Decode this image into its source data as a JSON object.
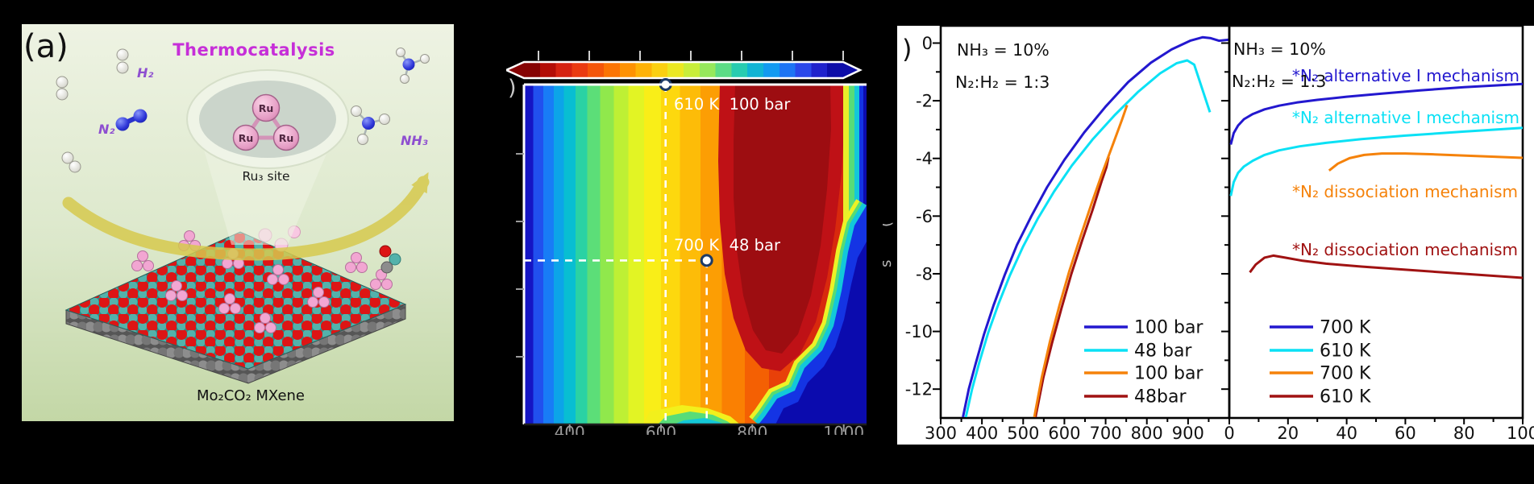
{
  "panel_a": {
    "label": "(a)",
    "title": "Thermocatalysis",
    "molecules": {
      "h2": "H₂",
      "n2": "N₂",
      "nh3": "NH₃"
    },
    "cluster": {
      "atom": "Ru",
      "site": "Ru₃ site"
    },
    "substrate": "Mo₂CO₂ MXene",
    "colors": {
      "title": "#c62fd8",
      "molecule_labels": "#8e4fd0"
    }
  },
  "panel_b": {
    "label_fragment": ")",
    "colorbar": {
      "style": "rainbow, dark red (high) to dark blue (low)",
      "tick_count": 7,
      "labels_visible": false
    }
  },
  "panel_c": {
    "label_fragment": ")",
    "conditions": [
      "NH₃ = 10%",
      "N₂:H₂ = 1:3"
    ],
    "ylabel_fragments": [
      "(",
      "s"
    ]
  },
  "chart_data": [
    {
      "type": "heatmap",
      "x_range": [
        300,
        1050
      ],
      "x_ticks": [
        400,
        600,
        800,
        1000
      ],
      "x_ticks_clipped": true,
      "y_range": [
        0,
        100
      ],
      "y_tick_interval": 20,
      "colormap": "reversed jet (dark red = high, dark blue = low)",
      "annotations": [
        {
          "text": "610 K  100 bar",
          "x": 610,
          "y": 100
        },
        {
          "text": "700 K  48 bar",
          "x": 700,
          "y": 48
        }
      ],
      "features": "High (dark red) plateau near 750-1000 K across pressures; rainbow bands fall toward low T (blue, left) and collapse to blue at high T / low pressure (bottom-right corner)."
    },
    {
      "type": "line",
      "x_range": [
        300,
        1000
      ],
      "x_ticks": [
        300,
        400,
        500,
        600,
        700,
        800,
        900
      ],
      "y_range": [
        -13,
        0.6
      ],
      "y_ticks": [
        0,
        -2,
        -4,
        -6,
        -8,
        -10,
        -12
      ],
      "annotations": [
        "NH₃ = 10%",
        "N₂:H₂ = 1:3"
      ],
      "legend_position": "lower right",
      "series": [
        {
          "name": "100 bar",
          "color": "#2318cf",
          "points": [
            [
              354,
              -12.97
            ],
            [
              368,
              -12
            ],
            [
              385,
              -11.1
            ],
            [
              405,
              -10.1
            ],
            [
              428,
              -9.1
            ],
            [
              455,
              -8.05
            ],
            [
              485,
              -7
            ],
            [
              520,
              -6
            ],
            [
              558,
              -5
            ],
            [
              600,
              -4.05
            ],
            [
              648,
              -3.1
            ],
            [
              700,
              -2.2
            ],
            [
              755,
              -1.35
            ],
            [
              810,
              -0.68
            ],
            [
              860,
              -0.22
            ],
            [
              905,
              0.08
            ],
            [
              935,
              0.2
            ],
            [
              955,
              0.17
            ],
            [
              975,
              0.08
            ],
            [
              1000,
              0.12
            ]
          ]
        },
        {
          "name": "48 bar",
          "color": "#0ae1f5",
          "points": [
            [
              361,
              -12.97
            ],
            [
              376,
              -12
            ],
            [
              394,
              -11.05
            ],
            [
              415,
              -10.05
            ],
            [
              440,
              -9.05
            ],
            [
              468,
              -8.05
            ],
            [
              500,
              -7.05
            ],
            [
              535,
              -6.1
            ],
            [
              575,
              -5.15
            ],
            [
              618,
              -4.25
            ],
            [
              668,
              -3.35
            ],
            [
              722,
              -2.5
            ],
            [
              778,
              -1.7
            ],
            [
              832,
              -1.05
            ],
            [
              872,
              -0.7
            ],
            [
              898,
              -0.6
            ],
            [
              915,
              -0.75
            ],
            [
              953,
              -2.4
            ]
          ]
        },
        {
          "name": "100 bar",
          "color": "#f5820a",
          "points": [
            [
              527,
              -12.97
            ],
            [
              545,
              -11.6
            ],
            [
              565,
              -10.35
            ],
            [
              588,
              -9.1
            ],
            [
              612,
              -7.9
            ],
            [
              638,
              -6.75
            ],
            [
              665,
              -5.6
            ],
            [
              692,
              -4.5
            ],
            [
              718,
              -3.5
            ],
            [
              740,
              -2.65
            ],
            [
              752,
              -2.15
            ]
          ]
        },
        {
          "name": "48bar",
          "color": "#a01212",
          "points": [
            [
              530,
              -12.97
            ],
            [
              549,
              -11.6
            ],
            [
              570,
              -10.4
            ],
            [
              593,
              -9.2
            ],
            [
              617,
              -8
            ],
            [
              643,
              -6.85
            ],
            [
              668,
              -5.8
            ],
            [
              690,
              -4.8
            ],
            [
              702,
              -4.3
            ],
            [
              707,
              -3.95
            ]
          ]
        }
      ]
    },
    {
      "type": "line",
      "x_range": [
        0,
        100
      ],
      "x_ticks": [
        0,
        20,
        40,
        60,
        80,
        100
      ],
      "y_range": [
        -13,
        0.6
      ],
      "y_ticks": [
        0,
        -2,
        -4,
        -6,
        -8,
        -10,
        -12
      ],
      "annotations": [
        "NH₃ = 10%",
        "N₂:H₂ = 1:3"
      ],
      "legend_position": "lower left",
      "curve_labels": [
        {
          "text": "*N₂ alternative I mechanism",
          "color": "#2318cf"
        },
        {
          "text": "*N₂ alternative I mechanism",
          "color": "#0ae1f5"
        },
        {
          "text": "*N₂ dissociation mechanism",
          "color": "#f5820a"
        },
        {
          "text": "*N₂ dissociation mechanism",
          "color": "#a01212"
        }
      ],
      "series": [
        {
          "name": "700 K",
          "color": "#2318cf",
          "points": [
            [
              0.5,
              -3.52
            ],
            [
              1.5,
              -3.12
            ],
            [
              3,
              -2.86
            ],
            [
              5,
              -2.64
            ],
            [
              8,
              -2.46
            ],
            [
              12,
              -2.3
            ],
            [
              17,
              -2.17
            ],
            [
              23,
              -2.06
            ],
            [
              30,
              -1.97
            ],
            [
              40,
              -1.86
            ],
            [
              52,
              -1.75
            ],
            [
              65,
              -1.64
            ],
            [
              80,
              -1.53
            ],
            [
              100,
              -1.42
            ]
          ]
        },
        {
          "name": "610 K",
          "color": "#0ae1f5",
          "points": [
            [
              0.5,
              -5.3
            ],
            [
              1.5,
              -4.82
            ],
            [
              3,
              -4.5
            ],
            [
              5,
              -4.28
            ],
            [
              8,
              -4.08
            ],
            [
              12,
              -3.88
            ],
            [
              17,
              -3.72
            ],
            [
              24,
              -3.58
            ],
            [
              33,
              -3.46
            ],
            [
              45,
              -3.33
            ],
            [
              60,
              -3.21
            ],
            [
              80,
              -3.07
            ],
            [
              100,
              -2.94
            ]
          ]
        },
        {
          "name": "700 K",
          "color": "#f5820a",
          "points": [
            [
              34,
              -4.42
            ],
            [
              37,
              -4.18
            ],
            [
              41,
              -3.99
            ],
            [
              46,
              -3.88
            ],
            [
              52,
              -3.83
            ],
            [
              60,
              -3.83
            ],
            [
              70,
              -3.86
            ],
            [
              85,
              -3.92
            ],
            [
              100,
              -3.98
            ]
          ]
        },
        {
          "name": "610 K",
          "color": "#a01212",
          "points": [
            [
              7,
              -7.95
            ],
            [
              9,
              -7.68
            ],
            [
              12,
              -7.44
            ],
            [
              15,
              -7.37
            ],
            [
              19,
              -7.44
            ],
            [
              25,
              -7.55
            ],
            [
              33,
              -7.65
            ],
            [
              45,
              -7.75
            ],
            [
              60,
              -7.86
            ],
            [
              80,
              -8
            ],
            [
              100,
              -8.14
            ]
          ]
        }
      ]
    }
  ]
}
